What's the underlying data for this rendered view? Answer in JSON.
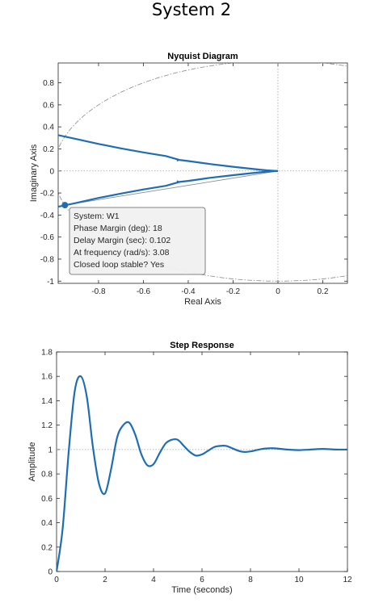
{
  "figure": {
    "title": "System 2"
  },
  "colors": {
    "curve": "#1f6db5",
    "grid": "#a0a0a0",
    "axis": "#262626"
  },
  "chart_data": [
    {
      "type": "line",
      "subtype": "nyquist",
      "title": "Nyquist Diagram",
      "xlabel": "Real Axis",
      "ylabel": "Imaginary Axis",
      "xlim": [
        -0.98,
        0.31
      ],
      "ylim": [
        -1.02,
        0.98
      ],
      "xticks": [
        -0.8,
        -0.6,
        -0.4,
        -0.2,
        0,
        0.2
      ],
      "xtick_labels": [
        "-0.8",
        "-0.6",
        "-0.4",
        "-0.2",
        "0",
        "0.2"
      ],
      "yticks": [
        0.8,
        0.6,
        0.4,
        0.2,
        0,
        -0.2,
        -0.4,
        -0.6,
        -0.8,
        -1
      ],
      "ytick_labels": [
        "0.8",
        "0.6",
        "0.4",
        "0.2",
        "0",
        "-0.2",
        "-0.4",
        "-0.6",
        "-0.8",
        "-1"
      ],
      "grid": false,
      "reference_lines": {
        "x": 0,
        "y": 0
      },
      "unit_circle": true,
      "series": [
        {
          "branch": "positive frequency",
          "x": [
            -0.98,
            -0.9,
            -0.8,
            -0.7,
            -0.6,
            -0.5,
            -0.44,
            -0.4,
            -0.3,
            -0.2,
            -0.1,
            -0.05,
            0
          ],
          "y": [
            -0.325,
            -0.29,
            -0.245,
            -0.205,
            -0.168,
            -0.135,
            -0.1,
            -0.09,
            -0.062,
            -0.038,
            -0.016,
            -0.006,
            0
          ]
        },
        {
          "branch": "negative frequency",
          "x": [
            -0.98,
            -0.9,
            -0.8,
            -0.7,
            -0.6,
            -0.5,
            -0.44,
            -0.4,
            -0.3,
            -0.2,
            -0.1,
            -0.05,
            0
          ],
          "y": [
            0.325,
            0.29,
            0.245,
            0.205,
            0.168,
            0.135,
            0.1,
            0.09,
            0.062,
            0.038,
            0.016,
            0.006,
            0
          ]
        }
      ],
      "margin_marker": {
        "x": -0.95,
        "y": -0.31
      },
      "datatip": {
        "lines": [
          "System: W1",
          "Phase Margin (deg): 18",
          "Delay Margin (sec): 0.102",
          "At frequency (rad/s): 3.08",
          "Closed loop stable? Yes"
        ]
      }
    },
    {
      "type": "line",
      "subtype": "step",
      "title": "Step Response",
      "xlabel": "Time (seconds)",
      "ylabel": "Amplitude",
      "xlim": [
        0,
        12
      ],
      "ylim": [
        0,
        1.8
      ],
      "xticks": [
        0,
        2,
        4,
        6,
        8,
        10,
        12
      ],
      "xtick_labels": [
        "0",
        "2",
        "4",
        "6",
        "8",
        "10",
        "12"
      ],
      "yticks": [
        0,
        0.2,
        0.4,
        0.6,
        0.8,
        1,
        1.2,
        1.4,
        1.6,
        1.8
      ],
      "ytick_labels": [
        "0",
        "0.2",
        "0.4",
        "0.6",
        "0.8",
        "1",
        "1.2",
        "1.4",
        "1.6",
        "1.8"
      ],
      "grid": false,
      "steady_state": 1,
      "series": [
        {
          "x": [
            0,
            0.25,
            0.5,
            0.75,
            1.0,
            1.25,
            1.5,
            1.75,
            2.0,
            2.25,
            2.5,
            2.75,
            3.0,
            3.25,
            3.5,
            3.75,
            4.0,
            4.25,
            4.5,
            4.75,
            5.0,
            5.25,
            5.5,
            5.75,
            6.0,
            6.25,
            6.5,
            6.75,
            7.0,
            7.25,
            7.5,
            7.75,
            8.0,
            8.25,
            8.5,
            8.75,
            9.0,
            9.5,
            10.0,
            10.5,
            11.0,
            11.5,
            12.0
          ],
          "y": [
            0,
            0.35,
            0.98,
            1.48,
            1.6,
            1.43,
            1.02,
            0.72,
            0.64,
            0.84,
            1.1,
            1.2,
            1.22,
            1.12,
            0.96,
            0.87,
            0.88,
            0.97,
            1.05,
            1.08,
            1.08,
            1.03,
            0.98,
            0.95,
            0.96,
            0.99,
            1.02,
            1.03,
            1.03,
            1.01,
            0.99,
            0.98,
            0.985,
            0.995,
            1.005,
            1.01,
            1.01,
            1.0,
            0.995,
            1.0,
            1.005,
            1.0,
            1.0
          ]
        }
      ]
    }
  ]
}
